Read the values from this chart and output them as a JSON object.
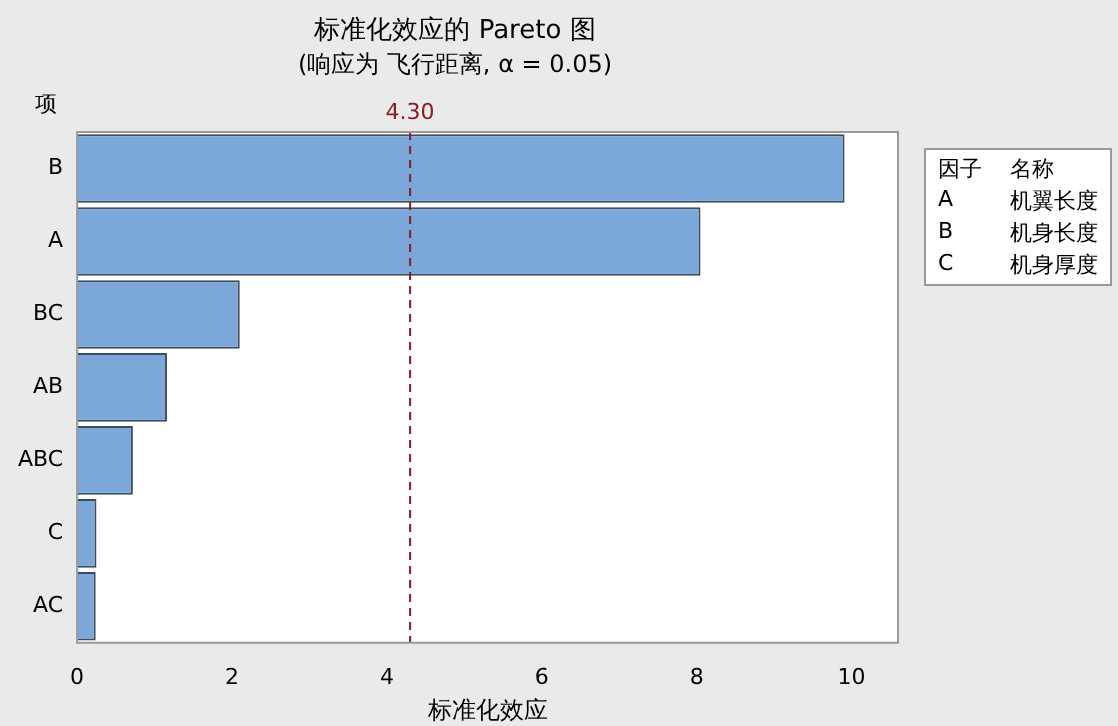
{
  "chart_data": {
    "type": "bar",
    "orientation": "horizontal",
    "title": "标准化效应的 Pareto 图",
    "subtitle": "(响应为 飞行距离, α = 0.05)",
    "xlabel": "标准化效应",
    "ylabel": "项",
    "categories": [
      "B",
      "A",
      "BC",
      "AB",
      "ABC",
      "C",
      "AC"
    ],
    "values": [
      9.91,
      8.05,
      2.1,
      1.16,
      0.72,
      0.25,
      0.24
    ],
    "color": "#7ba7d9",
    "xlim": [
      0,
      10.6
    ],
    "xticks": [
      0,
      2,
      4,
      6,
      8,
      10
    ],
    "grid": false,
    "legend": false,
    "ref_lines": [
      {
        "axis": "x",
        "value": 4.3,
        "label": "4.30",
        "color": "#8b1a2b",
        "line_style": "dashed"
      }
    ],
    "annotations": [
      "因子",
      "名称",
      "A",
      "机翼长度",
      "B",
      "机身长度",
      "C",
      "机身厚度"
    ]
  }
}
